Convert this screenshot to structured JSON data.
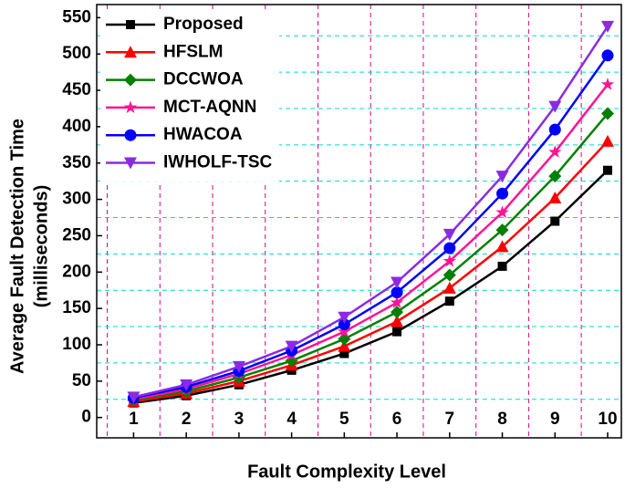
{
  "chart_data": {
    "type": "line",
    "xlabel": "Fault Complexity Level",
    "ylabel": [
      "Average Fault Detection Time",
      "(milliseconds)"
    ],
    "x": [
      1,
      2,
      3,
      4,
      5,
      6,
      7,
      8,
      9,
      10
    ],
    "series": [
      {
        "name": "Proposed",
        "color": "#000000",
        "marker": "square",
        "values": [
          20,
          30,
          45,
          65,
          88,
          118,
          160,
          208,
          270,
          340
        ]
      },
      {
        "name": "HFSLM",
        "color": "#ff0000",
        "marker": "triangle",
        "values": [
          22,
          33,
          50,
          72,
          98,
          132,
          178,
          235,
          302,
          380
        ]
      },
      {
        "name": "DCCWOA",
        "color": "#008000",
        "marker": "diamond",
        "values": [
          24,
          36,
          55,
          78,
          108,
          145,
          196,
          258,
          332,
          418
        ]
      },
      {
        "name": "MCT-AQNN",
        "color": "#ff1493",
        "marker": "star",
        "values": [
          25,
          39,
          60,
          86,
          118,
          158,
          215,
          282,
          365,
          458
        ]
      },
      {
        "name": "HWACOA",
        "color": "#0000ff",
        "marker": "circle",
        "values": [
          27,
          42,
          64,
          92,
          128,
          172,
          233,
          308,
          396,
          498
        ]
      },
      {
        "name": "IWHOLF-TSC",
        "color": "#8a2be2",
        "marker": "triangle-down",
        "values": [
          28,
          45,
          70,
          98,
          138,
          186,
          252,
          332,
          428,
          538
        ]
      }
    ],
    "xlim": [
      0.3,
      10.26
    ],
    "ylim": [
      -28,
      568
    ],
    "xticks": [
      1,
      2,
      3,
      4,
      5,
      6,
      7,
      8,
      9,
      10
    ],
    "yticks": [
      0,
      50,
      100,
      150,
      200,
      250,
      300,
      350,
      400,
      450,
      500,
      550
    ],
    "xgrid": [
      0.5,
      1.5,
      2.5,
      3.5,
      4.5,
      5.5,
      6.5,
      7.5,
      8.5,
      9.5
    ],
    "xgrid_color": "#e0007a",
    "ygrid": [
      25,
      75,
      125,
      175,
      225,
      275,
      325,
      375,
      425,
      475,
      525
    ],
    "ygrid_color": "#00d8d8",
    "legend": "upper left"
  }
}
